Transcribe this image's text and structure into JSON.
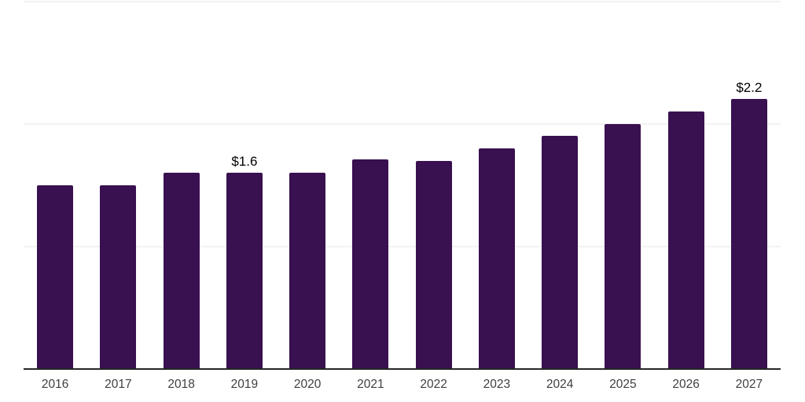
{
  "chart_data": {
    "type": "bar",
    "title": "",
    "xlabel": "",
    "ylabel": "",
    "categories": [
      "2016",
      "2017",
      "2018",
      "2019",
      "2020",
      "2021",
      "2022",
      "2023",
      "2024",
      "2025",
      "2026",
      "2027"
    ],
    "values": [
      1.5,
      1.5,
      1.6,
      1.6,
      1.6,
      1.71,
      1.7,
      1.8,
      1.9,
      2.0,
      2.1,
      2.2
    ],
    "data_labels": [
      {
        "category": "2019",
        "text": "$1.6"
      },
      {
        "category": "2027",
        "text": "$2.2"
      }
    ],
    "ylim": [
      0,
      3
    ],
    "gridline_values": [
      1,
      2,
      3
    ],
    "grid": "horizontal",
    "legend": "none",
    "y_axis_ticks_visible": false,
    "colors": {
      "bar": "#391050",
      "axis_line": "#262626",
      "gridline": "#f2f2f2",
      "x_tick_label": "#3f3f3f",
      "value_label": "#000000",
      "background": "#ffffff"
    }
  }
}
